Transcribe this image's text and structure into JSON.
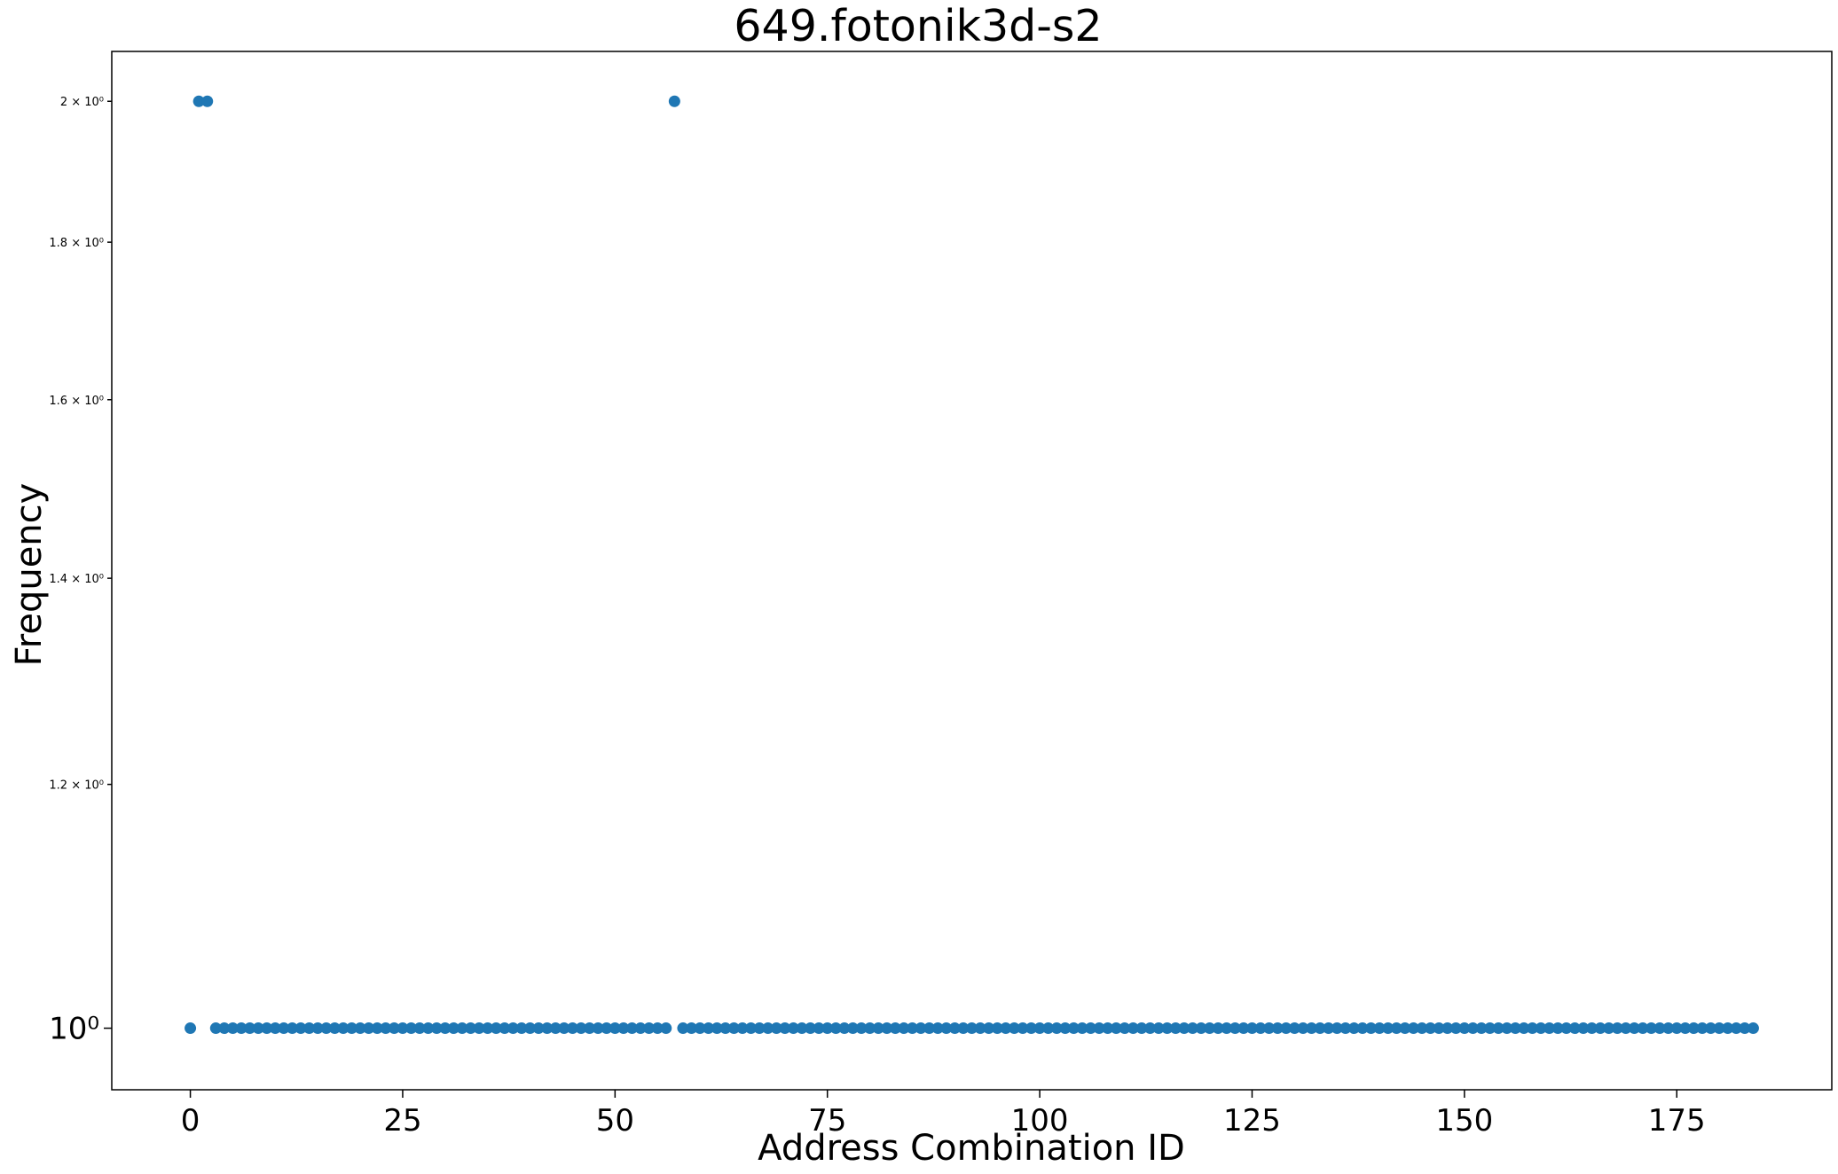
{
  "chart_data": {
    "type": "scatter",
    "title": "649.fotonik3d-s2",
    "xlabel": "Address Combination ID",
    "ylabel": "Frequency",
    "xlim": [
      -9.25,
      193.25
    ],
    "ylim": [
      0.955,
      2.076
    ],
    "yscale": "log",
    "grid": false,
    "colors": {
      "point": "#1f77b4",
      "axis": "#000000",
      "background": "#ffffff"
    },
    "x_ticks": [
      {
        "value": 0,
        "label": "0"
      },
      {
        "value": 25,
        "label": "25"
      },
      {
        "value": 50,
        "label": "50"
      },
      {
        "value": 75,
        "label": "75"
      },
      {
        "value": 100,
        "label": "100"
      },
      {
        "value": 125,
        "label": "125"
      },
      {
        "value": 150,
        "label": "150"
      },
      {
        "value": 175,
        "label": "175"
      }
    ],
    "y_major_ticks": [
      {
        "value": 1,
        "label": "10⁰"
      }
    ],
    "y_minor_ticks": [
      {
        "value": 1.2,
        "label": "1.2 × 10⁰"
      },
      {
        "value": 1.4,
        "label": "1.4 × 10⁰"
      },
      {
        "value": 1.6,
        "label": "1.6 × 10⁰"
      },
      {
        "value": 1.8,
        "label": "1.8 × 10⁰"
      },
      {
        "value": 2.0,
        "label": "2 × 10⁰"
      }
    ],
    "series": [
      {
        "x_start": 0,
        "x_end": 184,
        "default_y": 1,
        "overrides": [
          {
            "x": 1,
            "y": 2
          },
          {
            "x": 2,
            "y": 2
          },
          {
            "x": 57,
            "y": 2
          }
        ]
      }
    ]
  }
}
